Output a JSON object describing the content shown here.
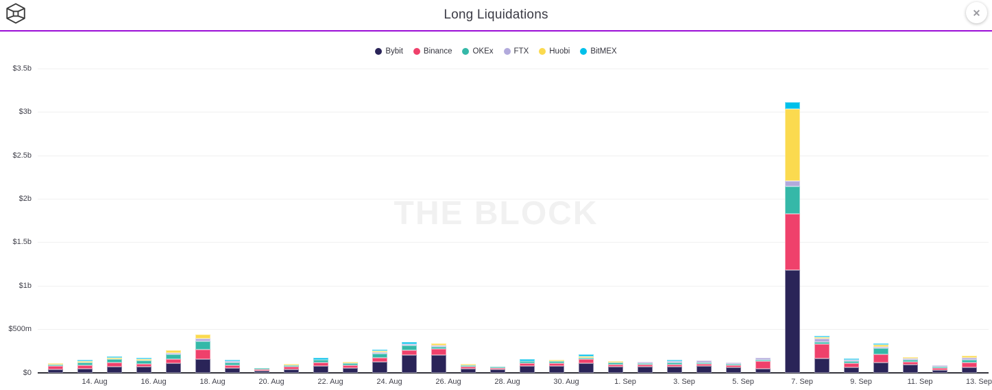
{
  "header": {
    "title": "Long Liquidations"
  },
  "icons": {
    "close": "✕"
  },
  "watermark": "THE BLOCK",
  "colors": {
    "accent_rule": "#9a0cd6",
    "axis": "#32323a",
    "grid": "#f0f0f0"
  },
  "chart_data": {
    "type": "bar",
    "stacked": true,
    "title": "Long Liquidations",
    "values_unit": "millions USD",
    "legend_position": "top",
    "grid": true,
    "ylim": [
      0,
      3500
    ],
    "y_ticks": [
      "$0",
      "$500m",
      "$1b",
      "$1.5b",
      "$2b",
      "$2.5b",
      "$3b",
      "$3.5b"
    ],
    "y_tick_values": [
      0,
      500,
      1000,
      1500,
      2000,
      2500,
      3000,
      3500
    ],
    "x_tick_labels": [
      "14. Aug",
      "16. Aug",
      "18. Aug",
      "20. Aug",
      "22. Aug",
      "24. Aug",
      "26. Aug",
      "28. Aug",
      "30. Aug",
      "1. Sep",
      "3. Sep",
      "5. Sep",
      "7. Sep",
      "9. Sep",
      "11. Sep",
      "13. Sep"
    ],
    "categories": [
      "13. Aug",
      "14. Aug",
      "15. Aug",
      "16. Aug",
      "17. Aug",
      "18. Aug",
      "19. Aug",
      "20. Aug",
      "21. Aug",
      "22. Aug",
      "23. Aug",
      "24. Aug",
      "25. Aug",
      "26. Aug",
      "27. Aug",
      "28. Aug",
      "29. Aug",
      "30. Aug",
      "31. Aug",
      "1. Sep",
      "2. Sep",
      "3. Sep",
      "4. Sep",
      "5. Sep",
      "6. Sep",
      "7. Sep",
      "8. Sep",
      "9. Sep",
      "10. Sep",
      "11. Sep",
      "12. Sep",
      "13. Sep"
    ],
    "series": [
      {
        "name": "Bybit",
        "color": "#2a2458",
        "values": [
          37,
          44,
          70,
          70,
          107,
          154,
          54,
          20,
          36,
          75,
          51,
          122,
          199,
          198,
          41,
          33,
          75,
          78,
          107,
          65,
          70,
          65,
          73,
          57,
          46,
          1180,
          162,
          57,
          115,
          87,
          30,
          59
        ]
      },
      {
        "name": "Binance",
        "color": "#ef416b",
        "values": [
          40,
          37,
          47,
          32,
          47,
          111,
          32,
          13,
          29,
          40,
          32,
          50,
          61,
          71,
          26,
          18,
          29,
          29,
          45,
          26,
          18,
          26,
          24,
          24,
          87,
          650,
          166,
          47,
          95,
          32,
          18,
          55
        ]
      },
      {
        "name": "OKEx",
        "color": "#35b8a8",
        "values": [
          16,
          32,
          37,
          34,
          53,
          95,
          29,
          16,
          18,
          34,
          21,
          45,
          50,
          24,
          18,
          16,
          24,
          21,
          18,
          21,
          8,
          21,
          21,
          18,
          16,
          310,
          24,
          24,
          71,
          30,
          13,
          32
        ]
      },
      {
        "name": "FTX",
        "color": "#b2aadc",
        "values": [
          0,
          0,
          0,
          0,
          16,
          32,
          13,
          0,
          0,
          0,
          0,
          13,
          18,
          13,
          0,
          0,
          0,
          0,
          0,
          0,
          8,
          16,
          18,
          16,
          18,
          65,
          40,
          16,
          16,
          8,
          13,
          26
        ]
      },
      {
        "name": "Huobi",
        "color": "#fbda4f",
        "values": [
          14,
          16,
          10,
          16,
          32,
          47,
          0,
          0,
          16,
          0,
          16,
          16,
          0,
          24,
          16,
          0,
          0,
          16,
          18,
          16,
          0,
          0,
          0,
          0,
          0,
          830,
          16,
          0,
          24,
          14,
          0,
          21
        ]
      },
      {
        "name": "BitMEX",
        "color": "#00c0ea",
        "values": [
          0,
          3,
          16,
          3,
          0,
          0,
          18,
          0,
          0,
          18,
          0,
          18,
          21,
          0,
          0,
          0,
          24,
          0,
          18,
          0,
          0,
          21,
          0,
          0,
          0,
          80,
          16,
          18,
          16,
          0,
          0,
          0
        ]
      }
    ]
  }
}
